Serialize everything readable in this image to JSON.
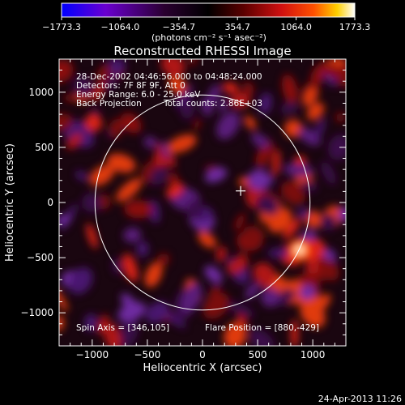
{
  "chart_data": {
    "type": "heatmap",
    "title": "Reconstructed RHESSI Image",
    "xlabel": "Heliocentric X (arcsec)",
    "ylabel": "Heliocentric Y (arcsec)",
    "xlim": [
      -1300,
      1300
    ],
    "ylim": [
      -1300,
      1300
    ],
    "x_ticks": [
      -1000,
      -500,
      0,
      500,
      1000
    ],
    "x_tick_labels": [
      "−1000",
      "−500",
      "0",
      "500",
      "1000"
    ],
    "y_ticks": [
      1000,
      500,
      0,
      -500,
      -1000
    ],
    "y_tick_labels": [
      "1000",
      "500",
      "0",
      "−500",
      "−1000"
    ],
    "colorbar": {
      "ticks": [
        "−1773.3",
        "−1064.0",
        "−354.7",
        "354.7",
        "1064.0",
        "1773.3"
      ],
      "min": -1773.3,
      "max": 1773.3,
      "units": "(photons cm⁻² s⁻¹ asec⁻²)",
      "colors": [
        "#0000ff",
        "#6a00d0",
        "#2a0030",
        "#000000",
        "#5a0000",
        "#d01010",
        "#ff5000",
        "#ffd000",
        "#ffffff"
      ]
    },
    "annotations": {
      "time_range": "28-Dec-2002 04:46:56.000 to 04:48:24.000",
      "detectors": "Detectors: 7F 8F 9F, Att 0",
      "energy": "Energy Range: 6.0 - 25.0 keV",
      "method": "Back Projection",
      "total_counts": "Total counts: 2.86E+03",
      "spin_axis": "Spin Axis = [346,105]",
      "flare_position": "Flare Position = [880,-429]"
    },
    "solar_limb": {
      "center": [
        0,
        0
      ],
      "radius": 975
    },
    "cross_marker": [
      346,
      105
    ],
    "bright_source": [
      880,
      -429
    ],
    "footer_timestamp": "24-Apr-2013 11:26"
  }
}
